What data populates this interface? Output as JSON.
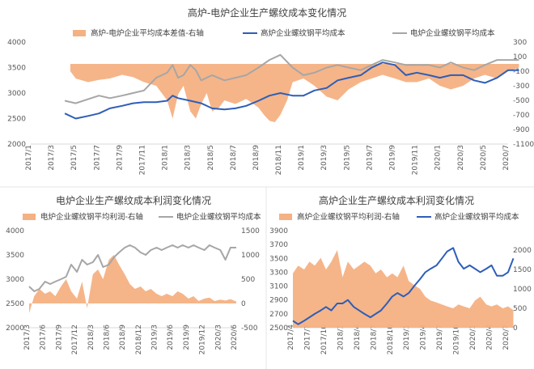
{
  "colors": {
    "area": "#f4b183",
    "blue": "#2e5eb8",
    "gray": "#a6a6a6",
    "axis": "#d9d9d9"
  },
  "chart_data": [
    {
      "id": "c1",
      "type": "line",
      "title": "高炉-电炉企业生产螺纹成本变化情况",
      "x_labels": [
        "2017/1",
        "2017/3",
        "2017/5",
        "2017/7",
        "2017/9",
        "2017/11",
        "2018/1",
        "2018/3",
        "2018/5",
        "2018/7",
        "2018/9",
        "2018/11",
        "2019/1",
        "2019/3",
        "2019/5",
        "2019/7",
        "2019/9",
        "2019/11",
        "2020/1",
        "2020/3",
        "2020/5",
        "2020/7"
      ],
      "ylim_left": [
        2000,
        4000
      ],
      "yticks_left": [
        2000,
        2500,
        3000,
        3500,
        4000
      ],
      "ylim_right": [
        -1100,
        300
      ],
      "yticks_right": [
        -1100,
        -900,
        -700,
        -500,
        -300,
        -100,
        100,
        300
      ],
      "series": [
        {
          "name": "高炉-电炉企业平均成本差值-右轴",
          "kind": "area",
          "axis": "right",
          "color_key": "area",
          "x": [
            2017.29,
            2017.33,
            2017.42,
            2017.5,
            2017.58,
            2017.67,
            2017.75,
            2017.83,
            2017.92,
            2018.0,
            2018.04,
            2018.08,
            2018.12,
            2018.17,
            2018.21,
            2018.25,
            2018.29,
            2018.33,
            2018.38,
            2018.42,
            2018.5,
            2018.58,
            2018.67,
            2018.71,
            2018.75,
            2018.79,
            2018.83,
            2018.88,
            2018.92,
            2019.0,
            2019.08,
            2019.17,
            2019.25,
            2019.33,
            2019.42,
            2019.5,
            2019.58,
            2019.67,
            2019.75,
            2019.83,
            2019.92,
            2020.0,
            2020.08,
            2020.17,
            2020.25,
            2020.33,
            2020.42,
            2020.5,
            2020.58
          ],
          "y": [
            -100,
            -200,
            -250,
            -220,
            -200,
            -150,
            -180,
            -250,
            -300,
            -500,
            -750,
            -420,
            -300,
            -650,
            -750,
            -550,
            -400,
            -650,
            -600,
            -500,
            -550,
            -480,
            -600,
            -700,
            -780,
            -800,
            -700,
            -500,
            -250,
            -200,
            -300,
            -450,
            -500,
            -350,
            -250,
            -200,
            -150,
            -200,
            -250,
            -250,
            -200,
            -300,
            -350,
            -300,
            -200,
            -150,
            -200,
            -100,
            -50
          ]
        },
        {
          "name": "高炉企业螺纹钢平均成本",
          "kind": "line",
          "axis": "left",
          "color_key": "blue",
          "x": [
            2017.25,
            2017.33,
            2017.42,
            2017.5,
            2017.58,
            2017.67,
            2017.75,
            2017.83,
            2017.92,
            2018.0,
            2018.04,
            2018.08,
            2018.17,
            2018.25,
            2018.33,
            2018.42,
            2018.5,
            2018.58,
            2018.67,
            2018.75,
            2018.83,
            2018.92,
            2019.0,
            2019.08,
            2019.17,
            2019.25,
            2019.33,
            2019.42,
            2019.5,
            2019.58,
            2019.67,
            2019.75,
            2019.83,
            2019.92,
            2020.0,
            2020.08,
            2020.17,
            2020.25,
            2020.33,
            2020.42,
            2020.5,
            2020.58
          ],
          "y": [
            2600,
            2500,
            2550,
            2600,
            2700,
            2750,
            2800,
            2820,
            2820,
            2850,
            2950,
            2900,
            2850,
            2800,
            2700,
            2680,
            2700,
            2750,
            2850,
            2950,
            3000,
            2950,
            2950,
            3050,
            3100,
            3250,
            3300,
            3350,
            3500,
            3600,
            3550,
            3350,
            3400,
            3350,
            3300,
            3350,
            3350,
            3250,
            3200,
            3300,
            3450,
            3450
          ]
        },
        {
          "name": "电炉企业螺纹钢平均成本",
          "kind": "line",
          "axis": "left",
          "color_key": "gray",
          "x": [
            2017.25,
            2017.33,
            2017.42,
            2017.5,
            2017.58,
            2017.67,
            2017.75,
            2017.83,
            2017.92,
            2018.0,
            2018.04,
            2018.08,
            2018.12,
            2018.17,
            2018.21,
            2018.25,
            2018.33,
            2018.42,
            2018.5,
            2018.58,
            2018.67,
            2018.75,
            2018.83,
            2018.92,
            2019.0,
            2019.08,
            2019.17,
            2019.25,
            2019.33,
            2019.42,
            2019.5,
            2019.58,
            2019.67,
            2019.75,
            2019.83,
            2019.92,
            2020.0,
            2020.08,
            2020.17,
            2020.25,
            2020.33,
            2020.42,
            2020.5,
            2020.58
          ],
          "y": [
            2850,
            2800,
            2880,
            2950,
            2900,
            2950,
            3000,
            3050,
            3300,
            3400,
            3550,
            3300,
            3350,
            3550,
            3450,
            3250,
            3350,
            3250,
            3300,
            3350,
            3500,
            3650,
            3750,
            3500,
            3350,
            3400,
            3500,
            3550,
            3500,
            3450,
            3550,
            3650,
            3600,
            3550,
            3550,
            3550,
            3500,
            3600,
            3500,
            3450,
            3550,
            3650,
            3650,
            3650
          ]
        }
      ]
    },
    {
      "id": "c2",
      "type": "line",
      "title": "电炉企业生产螺纹成本利润变化情况",
      "x_labels": [
        "2017/3",
        "2017/6",
        "2017/9",
        "2017/12",
        "2018/3",
        "2018/6",
        "2018/9",
        "2018/12",
        "2019/3",
        "2019/6",
        "2019/9",
        "2019/12",
        "2020/3",
        "2020/6"
      ],
      "ylim_left": [
        2000,
        4000
      ],
      "yticks_left": [
        2000,
        2500,
        3000,
        3500,
        4000
      ],
      "ylim_right": [
        -500,
        1500
      ],
      "yticks_right": [
        -500,
        0,
        500,
        1000,
        1500
      ],
      "series": [
        {
          "name": "电炉企业螺纹钢平均利润-右轴",
          "kind": "area",
          "axis": "right",
          "color_key": "area",
          "x": [
            2017.17,
            2017.25,
            2017.33,
            2017.42,
            2017.5,
            2017.58,
            2017.67,
            2017.75,
            2017.83,
            2017.92,
            2018.0,
            2018.08,
            2018.17,
            2018.25,
            2018.33,
            2018.42,
            2018.5,
            2018.58,
            2018.67,
            2018.75,
            2018.83,
            2018.92,
            2019.0,
            2019.08,
            2019.17,
            2019.25,
            2019.33,
            2019.42,
            2019.5,
            2019.58,
            2019.67,
            2019.75,
            2019.83,
            2019.92,
            2020.0,
            2020.08,
            2020.17,
            2020.25,
            2020.33,
            2020.42
          ],
          "y": [
            -200,
            150,
            300,
            200,
            250,
            150,
            350,
            500,
            250,
            100,
            450,
            -100,
            600,
            700,
            500,
            900,
            1000,
            800,
            600,
            400,
            300,
            350,
            250,
            300,
            200,
            150,
            200,
            150,
            250,
            200,
            100,
            150,
            50,
            100,
            120,
            50,
            80,
            60,
            90,
            40
          ]
        },
        {
          "name": "电炉企业螺纹钢平均成本",
          "kind": "line",
          "axis": "left",
          "color_key": "gray",
          "x": [
            2017.17,
            2017.25,
            2017.33,
            2017.42,
            2017.5,
            2017.58,
            2017.67,
            2017.75,
            2017.83,
            2017.92,
            2018.0,
            2018.08,
            2018.17,
            2018.25,
            2018.33,
            2018.42,
            2018.5,
            2018.58,
            2018.67,
            2018.75,
            2018.83,
            2018.92,
            2019.0,
            2019.08,
            2019.17,
            2019.25,
            2019.33,
            2019.42,
            2019.5,
            2019.58,
            2019.67,
            2019.75,
            2019.83,
            2019.92,
            2020.0,
            2020.08,
            2020.17,
            2020.25,
            2020.33,
            2020.42
          ],
          "y": [
            2850,
            2750,
            2800,
            2950,
            2900,
            2950,
            3000,
            3050,
            3300,
            3150,
            3400,
            3300,
            3350,
            3500,
            3250,
            3300,
            3450,
            3550,
            3650,
            3700,
            3650,
            3550,
            3500,
            3600,
            3650,
            3600,
            3650,
            3700,
            3650,
            3700,
            3650,
            3700,
            3650,
            3600,
            3700,
            3650,
            3600,
            3400,
            3650,
            3650
          ]
        }
      ]
    },
    {
      "id": "c3",
      "type": "line",
      "title": "高炉企业生产螺纹成本利润变化情况",
      "x_labels": [
        "2017/4",
        "2017/7",
        "2017/10",
        "2018/1",
        "2018/4",
        "2018/7",
        "2018/10",
        "2019/1",
        "2019/4",
        "2019/7",
        "2019/10",
        "2020/1",
        "2020/4",
        "2020/7"
      ],
      "ylim_left": [
        2500,
        3900
      ],
      "yticks_left": [
        2500,
        2700,
        2900,
        3100,
        3300,
        3500,
        3700,
        3900
      ],
      "ylim_right": [
        0,
        2500
      ],
      "yticks_right": [
        0,
        500,
        1000,
        1500,
        2000
      ],
      "series": [
        {
          "name": "高炉企业螺纹钢平均利润-右轴",
          "kind": "area",
          "axis": "right",
          "color_key": "area",
          "x": [
            2017.25,
            2017.33,
            2017.42,
            2017.5,
            2017.58,
            2017.67,
            2017.75,
            2017.83,
            2017.92,
            2018.0,
            2018.08,
            2018.17,
            2018.25,
            2018.33,
            2018.42,
            2018.5,
            2018.58,
            2018.67,
            2018.75,
            2018.83,
            2018.92,
            2019.0,
            2019.08,
            2019.17,
            2019.25,
            2019.33,
            2019.42,
            2019.5,
            2019.58,
            2019.67,
            2019.75,
            2019.83,
            2019.92,
            2020.0,
            2020.08,
            2020.17,
            2020.25,
            2020.33,
            2020.42,
            2020.5,
            2020.58
          ],
          "y": [
            1400,
            1600,
            1500,
            1700,
            1600,
            1800,
            1500,
            1700,
            2000,
            1300,
            1700,
            1500,
            1600,
            1700,
            1600,
            1400,
            1500,
            1300,
            1400,
            1300,
            1600,
            1200,
            1100,
            1000,
            800,
            700,
            650,
            600,
            550,
            500,
            600,
            550,
            500,
            700,
            800,
            600,
            550,
            600,
            500,
            550,
            450
          ]
        },
        {
          "name": "高炉企业螺纹钢平均成本",
          "kind": "line",
          "axis": "left",
          "color_key": "blue",
          "x": [
            2017.25,
            2017.33,
            2017.42,
            2017.5,
            2017.58,
            2017.67,
            2017.75,
            2017.83,
            2017.92,
            2018.0,
            2018.08,
            2018.17,
            2018.25,
            2018.33,
            2018.42,
            2018.5,
            2018.58,
            2018.67,
            2018.75,
            2018.83,
            2018.92,
            2019.0,
            2019.08,
            2019.17,
            2019.25,
            2019.33,
            2019.42,
            2019.5,
            2019.58,
            2019.67,
            2019.75,
            2019.83,
            2019.92,
            2020.0,
            2020.08,
            2020.17,
            2020.25,
            2020.33,
            2020.42,
            2020.5,
            2020.58
          ],
          "y": [
            2600,
            2550,
            2600,
            2650,
            2700,
            2750,
            2800,
            2750,
            2850,
            2850,
            2900,
            2800,
            2750,
            2700,
            2650,
            2700,
            2750,
            2850,
            2950,
            3000,
            2950,
            3000,
            3100,
            3200,
            3300,
            3350,
            3400,
            3500,
            3600,
            3650,
            3450,
            3350,
            3400,
            3350,
            3300,
            3350,
            3400,
            3250,
            3250,
            3300,
            3500
          ]
        }
      ]
    }
  ]
}
